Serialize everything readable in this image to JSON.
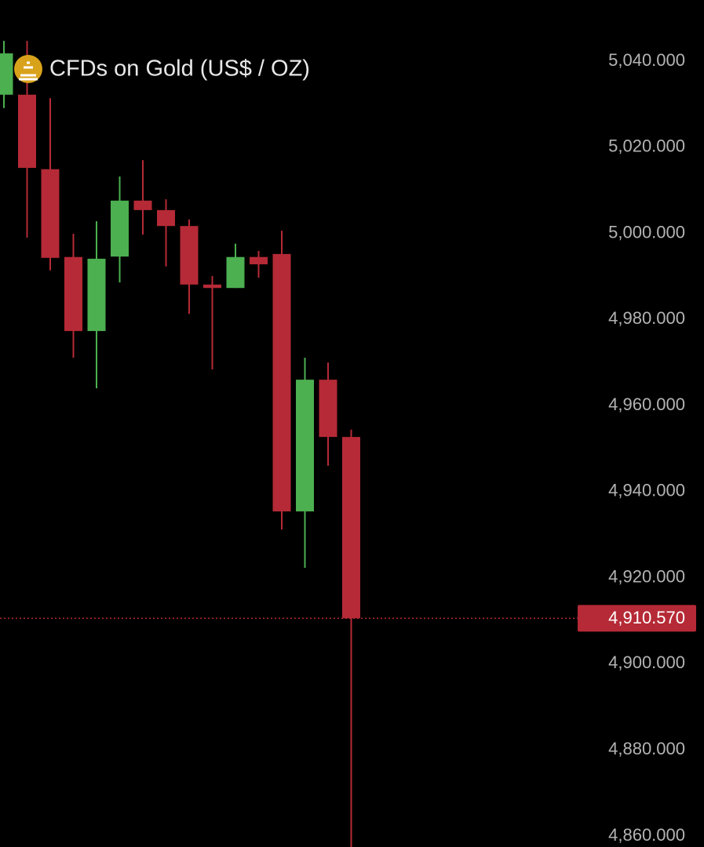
{
  "chart_data": {
    "type": "candlestick",
    "title": "CFDs on Gold (US$ / OZ)",
    "categories": [
      null,
      null,
      null,
      null,
      null,
      null,
      null,
      null,
      null,
      null,
      null,
      null,
      null,
      null,
      null,
      null
    ],
    "open": [
      5032.2,
      5032.2,
      5014.9,
      4994.5,
      4977.3,
      4994.6,
      5007.6,
      5005.4,
      5001.7,
      4988.1,
      4987.3,
      4994.5,
      4995.2,
      4935.4,
      4966.0,
      4952.7
    ],
    "high": [
      5044.7,
      5044.7,
      5031.4,
      4999.9,
      5002.8,
      5013.2,
      5017.0,
      5007.9,
      5003.2,
      4990.1,
      4997.6,
      4995.9,
      5000.6,
      4971.1,
      4970.0,
      4954.4
    ],
    "low": [
      5029.1,
      4999.0,
      4991.4,
      4971.1,
      4964.0,
      4988.6,
      4999.7,
      4992.3,
      4981.3,
      4968.4,
      4987.3,
      4989.7,
      4931.2,
      4922.3,
      4946.0,
      4857
    ],
    "close": [
      5041.8,
      5015.2,
      4994.3,
      4977.3,
      4994.1,
      5007.6,
      5005.4,
      5001.7,
      4988.1,
      4987.3,
      4994.5,
      4992.8,
      4935.4,
      4966.0,
      4952.7,
      4910.57
    ],
    "up_color": "#4caf50",
    "down_color": "#b52a36",
    "ylim": [
      4857.45,
      5054.2
    ],
    "yticks": [
      {
        "value": 5040,
        "label": "5,040.000"
      },
      {
        "value": 5020,
        "label": "5,020.000"
      },
      {
        "value": 5000,
        "label": "5,000.000"
      },
      {
        "value": 4980,
        "label": "4,980.000"
      },
      {
        "value": 4960,
        "label": "4,960.000"
      },
      {
        "value": 4940,
        "label": "4,940.000"
      },
      {
        "value": 4920,
        "label": "4,920.000"
      },
      {
        "value": 4900,
        "label": "4,900.000"
      },
      {
        "value": 4880,
        "label": "4,880.000"
      },
      {
        "value": 4860,
        "label": "4,860.000"
      }
    ],
    "price_line": {
      "value": 4910.57,
      "label": "4,910.570"
    },
    "grid": false
  }
}
